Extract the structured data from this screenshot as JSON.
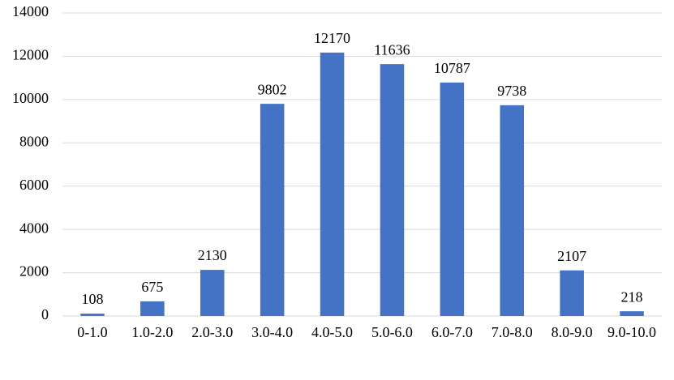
{
  "chart_data": {
    "type": "bar",
    "categories": [
      "0-1.0",
      "1.0-2.0",
      "2.0-3.0",
      "3.0-4.0",
      "4.0-5.0",
      "5.0-6.0",
      "6.0-7.0",
      "7.0-8.0",
      "8.0-9.0",
      "9.0-10.0"
    ],
    "values": [
      108,
      675,
      2130,
      9802,
      12170,
      11636,
      10787,
      9738,
      2107,
      218
    ],
    "color": "#4472c4",
    "ylim": [
      0,
      14000
    ],
    "yticks": [
      0,
      2000,
      4000,
      6000,
      8000,
      10000,
      12000,
      14000
    ],
    "grid": true
  }
}
